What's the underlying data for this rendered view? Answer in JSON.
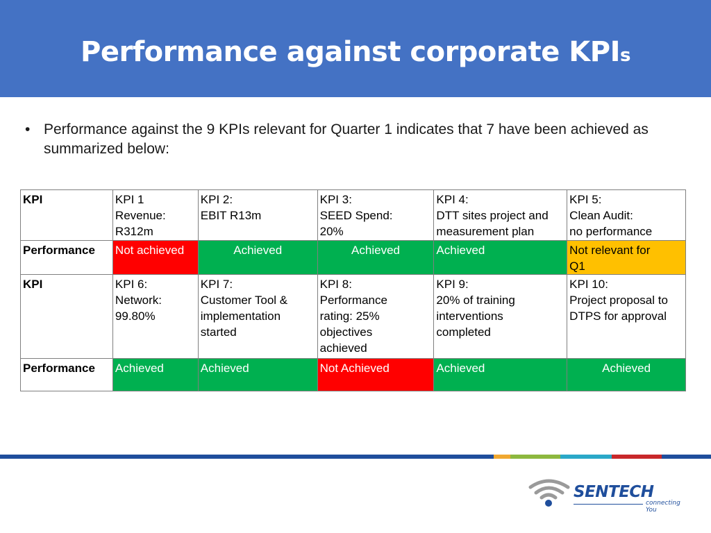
{
  "slide": {
    "title_main": "Performance against corporate KPI",
    "title_suffix": "s",
    "bullet": "Performance against the 9 KPIs relevant for Quarter 1 indicates that 7 have been achieved as summarized  below:"
  },
  "table": {
    "rows": [
      {
        "kind": "kpi",
        "header": "KPI",
        "cells": [
          {
            "lines": [
              "KPI 1",
              "Revenue:",
              "R312m"
            ]
          },
          {
            "lines": [
              "KPI 2:",
              "EBIT R13m"
            ]
          },
          {
            "lines": [
              "KPI 3:",
              "SEED Spend:",
              "20%"
            ]
          },
          {
            "lines": [
              "KPI 4:",
              "DTT sites project and",
              "measurement plan"
            ]
          },
          {
            "lines": [
              "KPI 5:",
              "Clean Audit:",
              "no performance"
            ]
          }
        ]
      },
      {
        "kind": "performance",
        "header": "Performance",
        "cells": [
          {
            "text": "Not achieved",
            "status": "red",
            "align": "left"
          },
          {
            "text": "Achieved",
            "status": "green",
            "align": "center"
          },
          {
            "text": "Achieved",
            "status": "green",
            "align": "center"
          },
          {
            "text": "Achieved",
            "status": "green",
            "align": "left"
          },
          {
            "lines": [
              "Not relevant for",
              "Q1"
            ],
            "status": "amber",
            "align": "left"
          }
        ]
      },
      {
        "kind": "kpi",
        "header": "KPI",
        "cells": [
          {
            "lines": [
              "KPI 6:",
              "Network:",
              "99.80%"
            ]
          },
          {
            "lines": [
              "KPI 7:",
              "Customer Tool &",
              "implementation",
              "started"
            ]
          },
          {
            "lines": [
              "KPI 8:",
              "Performance",
              "rating: 25%",
              "objectives",
              "achieved"
            ]
          },
          {
            "lines": [
              "KPI 9:",
              "20% of training",
              "interventions",
              "completed"
            ]
          },
          {
            "lines": [
              "KPI 10:",
              "Project proposal to",
              "DTPS for approval"
            ]
          }
        ]
      },
      {
        "kind": "performance",
        "header": "Performance",
        "cells": [
          {
            "text": "Achieved",
            "status": "green",
            "align": "left"
          },
          {
            "text": "Achieved",
            "status": "green",
            "align": "left"
          },
          {
            "text": "Not Achieved",
            "status": "red",
            "align": "left"
          },
          {
            "text": "Achieved",
            "status": "green",
            "align": "left"
          },
          {
            "text": "Achieved",
            "status": "green",
            "align": "center"
          }
        ]
      }
    ]
  },
  "colors": {
    "title_bar": "#4472c4",
    "achieved": "#00b050",
    "not_achieved": "#ff0000",
    "not_relevant": "#ffc000",
    "stripe": [
      "#1f4e9c",
      "#f0a830",
      "#8db83f",
      "#2aa8c8",
      "#c8282a",
      "#1f4e9c"
    ]
  },
  "logo": {
    "name": "SENTECH",
    "tagline": "connecting You",
    "icon": "wifi-signal-icon"
  }
}
